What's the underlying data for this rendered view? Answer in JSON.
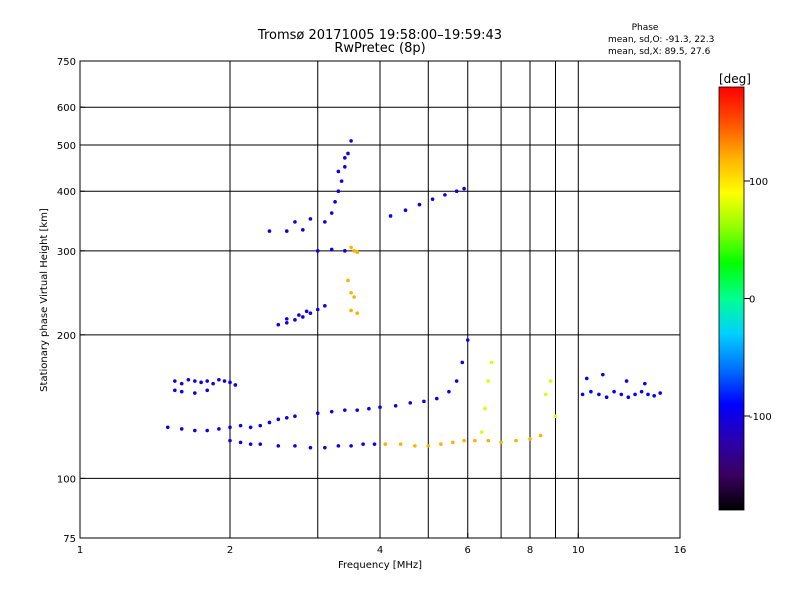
{
  "chart_data": {
    "type": "scatter",
    "title_line1": "Tromsø 20171005 19:58:00–19:59:43",
    "title_line2": "RwPretec (8p)",
    "xlabel": "Frequency [MHz]",
    "ylabel": "Stationary phase Virtual Height [km]",
    "x_scale": "log",
    "y_scale": "log",
    "xlim": [
      1,
      16
    ],
    "ylim": [
      75,
      750
    ],
    "x_ticks": [
      1,
      2,
      4,
      6,
      8,
      10,
      16
    ],
    "x_ticklabels": [
      "1",
      "2",
      "4",
      "6",
      "8",
      "10",
      "16"
    ],
    "x_gridlines": [
      2,
      3,
      4,
      5,
      6,
      7,
      8,
      9,
      10
    ],
    "y_ticks": [
      75,
      100,
      200,
      300,
      400,
      500,
      600,
      750
    ],
    "y_ticklabels": [
      "75",
      "100",
      "200",
      "300",
      "400",
      "500",
      "600",
      "750"
    ],
    "y_gridlines": [
      100,
      200,
      300,
      400,
      500,
      600
    ],
    "grid": true,
    "stats": {
      "heading": "Phase",
      "line1": "mean, sd,O: -91.3, 22.3",
      "line2": "mean, sd,X:  89.5, 27.6"
    },
    "colorbar": {
      "label": "[deg]",
      "range": [
        -180,
        180
      ],
      "ticks": [
        100,
        0,
        -100
      ],
      "ticklabels": [
        "100",
        "0",
        "-100"
      ],
      "colormap": [
        "#000000",
        "#3a0060",
        "#2a00b0",
        "#0000ff",
        "#0070ff",
        "#00d0ff",
        "#00ff90",
        "#00ff00",
        "#90ff00",
        "#ffff00",
        "#ffb000",
        "#ff5000",
        "#ff0000"
      ]
    },
    "traces": [
      {
        "name": "",
        "phase": -100,
        "points": [
          [
            1.55,
            160
          ],
          [
            1.6,
            158
          ],
          [
            1.65,
            161
          ],
          [
            1.7,
            160
          ],
          [
            1.75,
            159
          ],
          [
            1.8,
            160
          ],
          [
            1.85,
            158
          ],
          [
            1.9,
            161
          ],
          [
            1.95,
            160
          ],
          [
            2.0,
            159
          ],
          [
            2.05,
            157
          ],
          [
            1.55,
            153
          ],
          [
            1.6,
            152
          ],
          [
            1.7,
            151
          ],
          [
            1.8,
            153
          ]
        ]
      },
      {
        "name": "",
        "phase": -100,
        "points": [
          [
            1.5,
            128
          ],
          [
            1.6,
            127
          ],
          [
            1.7,
            126
          ],
          [
            1.8,
            126
          ],
          [
            1.9,
            127
          ],
          [
            2.0,
            128
          ],
          [
            2.1,
            129
          ],
          [
            2.2,
            128
          ],
          [
            2.3,
            129
          ],
          [
            2.4,
            131
          ],
          [
            2.5,
            133
          ],
          [
            2.6,
            134
          ],
          [
            2.7,
            135
          ]
        ]
      },
      {
        "name": "",
        "phase": -100,
        "points": [
          [
            2.0,
            120
          ],
          [
            2.1,
            119
          ],
          [
            2.2,
            118
          ],
          [
            2.3,
            118
          ],
          [
            2.5,
            117
          ],
          [
            2.7,
            117
          ],
          [
            2.9,
            116
          ],
          [
            3.1,
            116
          ],
          [
            3.3,
            117
          ],
          [
            3.5,
            117
          ],
          [
            3.7,
            118
          ],
          [
            3.9,
            118
          ]
        ]
      },
      {
        "name": "",
        "phase": -100,
        "points": [
          [
            3.0,
            137
          ],
          [
            3.2,
            138
          ],
          [
            3.4,
            139
          ],
          [
            3.6,
            139
          ],
          [
            3.8,
            140
          ],
          [
            4.0,
            141
          ],
          [
            4.3,
            142
          ],
          [
            4.6,
            144
          ],
          [
            4.9,
            145
          ],
          [
            5.2,
            147
          ],
          [
            5.5,
            152
          ],
          [
            5.7,
            160
          ],
          [
            5.85,
            175
          ],
          [
            6.0,
            195
          ]
        ]
      },
      {
        "name": "",
        "phase": -100,
        "points": [
          [
            2.5,
            210
          ],
          [
            2.6,
            212
          ],
          [
            2.7,
            215
          ],
          [
            2.8,
            218
          ],
          [
            2.9,
            222
          ],
          [
            3.0,
            226
          ],
          [
            3.1,
            230
          ],
          [
            2.6,
            216
          ],
          [
            2.75,
            220
          ],
          [
            2.85,
            224
          ]
        ]
      },
      {
        "name": "",
        "phase": -100,
        "points": [
          [
            2.4,
            330
          ],
          [
            2.6,
            330
          ],
          [
            2.8,
            332
          ],
          [
            3.0,
            300
          ],
          [
            3.2,
            302
          ],
          [
            3.4,
            300
          ],
          [
            2.7,
            345
          ],
          [
            2.9,
            350
          ],
          [
            3.1,
            345
          ]
        ]
      },
      {
        "name": "",
        "phase": -100,
        "points": [
          [
            3.2,
            360
          ],
          [
            3.25,
            380
          ],
          [
            3.3,
            400
          ],
          [
            3.35,
            420
          ],
          [
            3.4,
            450
          ],
          [
            3.45,
            480
          ],
          [
            3.5,
            510
          ],
          [
            3.3,
            440
          ],
          [
            3.4,
            470
          ]
        ]
      },
      {
        "name": "",
        "phase": 120,
        "points": [
          [
            3.5,
            305
          ],
          [
            3.55,
            300
          ],
          [
            3.6,
            298
          ],
          [
            3.5,
            245
          ],
          [
            3.55,
            240
          ],
          [
            3.5,
            225
          ],
          [
            3.6,
            222
          ],
          [
            3.45,
            260
          ]
        ]
      },
      {
        "name": "",
        "phase": -100,
        "points": [
          [
            4.2,
            355
          ],
          [
            4.5,
            365
          ],
          [
            4.8,
            375
          ],
          [
            5.1,
            385
          ],
          [
            5.4,
            393
          ],
          [
            5.7,
            400
          ],
          [
            5.9,
            405
          ]
        ]
      },
      {
        "name": "",
        "phase": 120,
        "points": [
          [
            4.1,
            118
          ],
          [
            4.4,
            118
          ],
          [
            4.7,
            117
          ],
          [
            5.0,
            117
          ],
          [
            5.3,
            118
          ],
          [
            5.6,
            119
          ],
          [
            5.9,
            120
          ],
          [
            6.2,
            120
          ],
          [
            6.6,
            120
          ],
          [
            7.0,
            119
          ],
          [
            7.5,
            120
          ],
          [
            8.0,
            121
          ],
          [
            8.4,
            123
          ]
        ]
      },
      {
        "name": "",
        "phase": 80,
        "points": [
          [
            6.4,
            125
          ],
          [
            6.5,
            140
          ],
          [
            6.6,
            160
          ],
          [
            6.7,
            175
          ],
          [
            8.6,
            150
          ],
          [
            8.8,
            160
          ],
          [
            9.0,
            135
          ]
        ]
      },
      {
        "name": "",
        "phase": -90,
        "points": [
          [
            10.2,
            150
          ],
          [
            10.6,
            152
          ],
          [
            11.0,
            150
          ],
          [
            11.4,
            148
          ],
          [
            11.8,
            152
          ],
          [
            12.2,
            150
          ],
          [
            12.6,
            148
          ],
          [
            13.0,
            150
          ],
          [
            13.4,
            152
          ],
          [
            13.8,
            150
          ],
          [
            14.2,
            149
          ],
          [
            14.6,
            151
          ],
          [
            10.4,
            162
          ],
          [
            11.2,
            165
          ],
          [
            12.5,
            160
          ],
          [
            13.6,
            158
          ]
        ]
      }
    ]
  }
}
